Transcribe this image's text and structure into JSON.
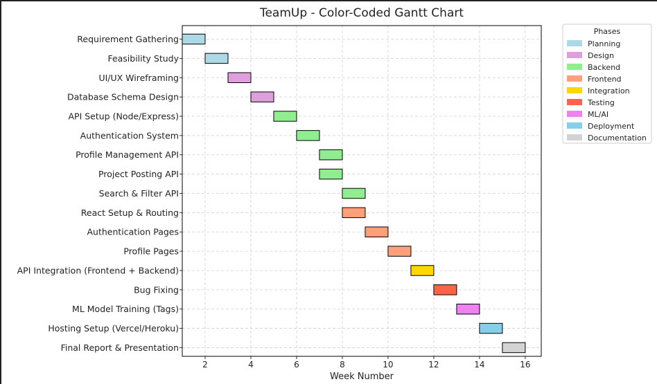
{
  "chart_data": {
    "type": "bar",
    "orientation": "horizontal-gantt",
    "title": "TeamUp - Color-Coded Gantt Chart",
    "xlabel": "Week Number",
    "ylabel": "",
    "xlim": [
      1,
      16.7
    ],
    "x_ticks": [
      2,
      4,
      6,
      8,
      10,
      12,
      14,
      16
    ],
    "grid": true,
    "legend": {
      "title": "Phases",
      "placement": "outside-right",
      "entries": [
        {
          "name": "Planning",
          "color": "#add8e6"
        },
        {
          "name": "Design",
          "color": "#dda0dd"
        },
        {
          "name": "Backend",
          "color": "#90ee90"
        },
        {
          "name": "Frontend",
          "color": "#ffa07a"
        },
        {
          "name": "Integration",
          "color": "#ffd700"
        },
        {
          "name": "Testing",
          "color": "#ff6347"
        },
        {
          "name": "ML/AI",
          "color": "#ee82ee"
        },
        {
          "name": "Deployment",
          "color": "#87ceeb"
        },
        {
          "name": "Documentation",
          "color": "#d3d3d3"
        }
      ]
    },
    "tasks": [
      {
        "name": "Requirement Gathering",
        "start": 1,
        "end": 2,
        "phase": "Planning"
      },
      {
        "name": "Feasibility Study",
        "start": 2,
        "end": 3,
        "phase": "Planning"
      },
      {
        "name": "UI/UX Wireframing",
        "start": 3,
        "end": 4,
        "phase": "Design"
      },
      {
        "name": "Database Schema Design",
        "start": 4,
        "end": 5,
        "phase": "Design"
      },
      {
        "name": "API Setup (Node/Express)",
        "start": 5,
        "end": 6,
        "phase": "Backend"
      },
      {
        "name": "Authentication System",
        "start": 6,
        "end": 7,
        "phase": "Backend"
      },
      {
        "name": "Profile Management API",
        "start": 7,
        "end": 8,
        "phase": "Backend"
      },
      {
        "name": "Project Posting API",
        "start": 7,
        "end": 8,
        "phase": "Backend"
      },
      {
        "name": "Search & Filter API",
        "start": 8,
        "end": 9,
        "phase": "Backend"
      },
      {
        "name": "React Setup & Routing",
        "start": 8,
        "end": 9,
        "phase": "Frontend"
      },
      {
        "name": "Authentication Pages",
        "start": 9,
        "end": 10,
        "phase": "Frontend"
      },
      {
        "name": "Profile Pages",
        "start": 10,
        "end": 11,
        "phase": "Frontend"
      },
      {
        "name": "API Integration (Frontend + Backend)",
        "start": 11,
        "end": 12,
        "phase": "Integration"
      },
      {
        "name": "Bug Fixing",
        "start": 12,
        "end": 13,
        "phase": "Testing"
      },
      {
        "name": "ML Model Training (Tags)",
        "start": 13,
        "end": 14,
        "phase": "ML/AI"
      },
      {
        "name": "Hosting Setup (Vercel/Heroku)",
        "start": 14,
        "end": 15,
        "phase": "Deployment"
      },
      {
        "name": "Final Report & Presentation",
        "start": 15,
        "end": 16,
        "phase": "Documentation"
      }
    ]
  }
}
